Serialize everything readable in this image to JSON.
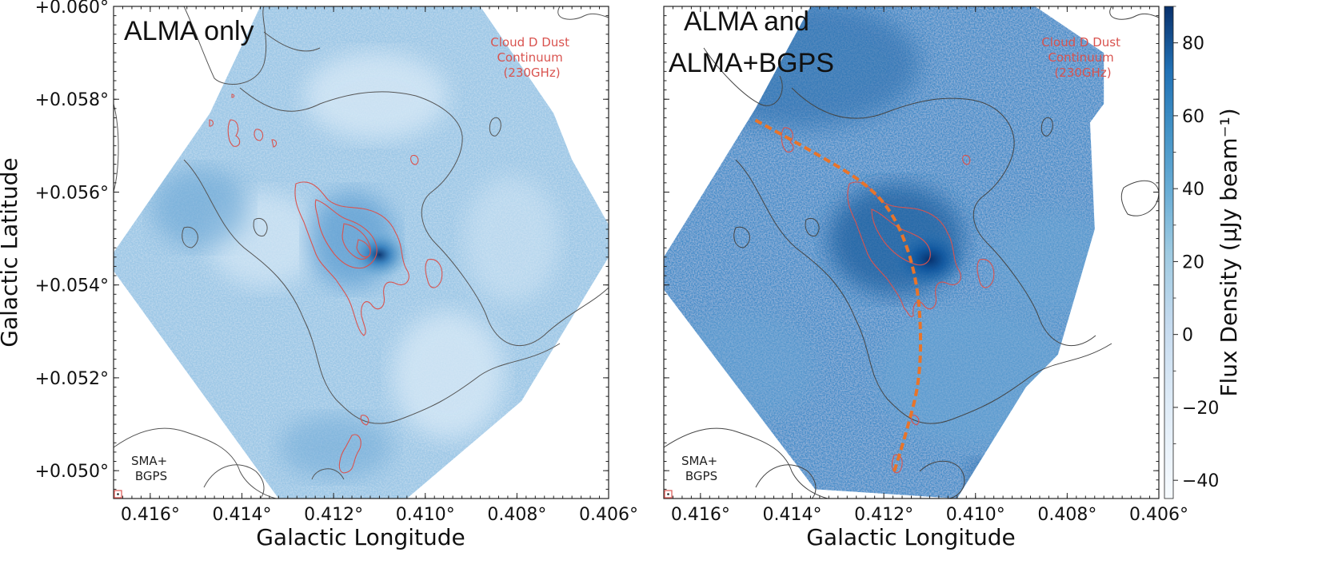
{
  "chart_data": [
    {
      "type": "heatmap",
      "panel_title_lines": [
        "ALMA only"
      ],
      "annotation_lines": [
        "Cloud D Dust",
        "Continuum",
        "(230GHz)"
      ],
      "corner_label_lines": [
        "SMA+",
        "BGPS"
      ],
      "xlabel": "Galactic Longitude",
      "ylabel": "Galactic Latitude",
      "xlim": [
        0.4168,
        0.406
      ],
      "ylim": [
        0.0494,
        0.06
      ],
      "xticks": [
        0.416,
        0.414,
        0.412,
        0.41,
        0.408,
        0.406
      ],
      "xtick_labels": [
        "0.416°",
        "0.414°",
        "0.412°",
        "0.410°",
        "0.408°",
        "0.406°"
      ],
      "yticks": [
        0.05,
        0.052,
        0.054,
        0.056,
        0.058,
        0.06
      ],
      "ytick_labels": [
        "+0.050°",
        "+0.052°",
        "+0.054°",
        "+0.056°",
        "+0.058°",
        "+0.060°"
      ],
      "peak": {
        "l": 0.411,
        "b": 0.05465
      },
      "colormap": "Blues",
      "contour_colors": {
        "single_dish": "#555555",
        "dust": "#d9534f"
      }
    },
    {
      "type": "heatmap",
      "panel_title_lines": [
        "ALMA and",
        "ALMA+BGPS"
      ],
      "annotation_lines": [
        "Cloud D Dust",
        "Continuum",
        "(230GHz)"
      ],
      "corner_label_lines": [
        "SMA+",
        "BGPS"
      ],
      "xlabel": "Galactic Longitude",
      "ylabel": "",
      "xlim": [
        0.4168,
        0.406
      ],
      "ylim": [
        0.0494,
        0.06
      ],
      "xticks": [
        0.416,
        0.414,
        0.412,
        0.41,
        0.408,
        0.406
      ],
      "xtick_labels": [
        "0.416°",
        "0.414°",
        "0.412°",
        "0.410°",
        "0.408°",
        "0.406°"
      ],
      "peak": {
        "l": 0.411,
        "b": 0.05455
      },
      "filament_path": [
        {
          "l": 0.4148,
          "b": 0.05755
        },
        {
          "l": 0.4136,
          "b": 0.0569
        },
        {
          "l": 0.4124,
          "b": 0.0562
        },
        {
          "l": 0.4118,
          "b": 0.05555
        },
        {
          "l": 0.4114,
          "b": 0.0546
        },
        {
          "l": 0.4112,
          "b": 0.0535
        },
        {
          "l": 0.4112,
          "b": 0.052
        },
        {
          "l": 0.4115,
          "b": 0.05085
        },
        {
          "l": 0.4118,
          "b": 0.0499
        }
      ],
      "colormap": "Blues",
      "filament_color": "#e8742a",
      "colorbar": {
        "label": "Flux Density (μJy beam⁻¹)",
        "range": [
          -45,
          90
        ],
        "ticks": [
          -40,
          -20,
          0,
          20,
          40,
          60,
          80
        ],
        "tick_labels": [
          "−40",
          "−20",
          "0",
          "20",
          "40",
          "60",
          "80"
        ]
      }
    }
  ]
}
